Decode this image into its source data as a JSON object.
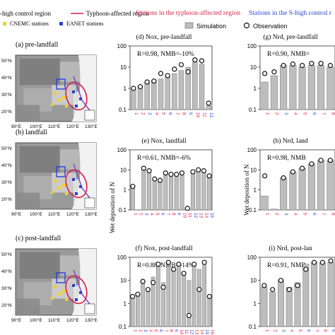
{
  "legend": {
    "left_region": "-high control region",
    "typhoon_region": "Typhoon-affected region",
    "cnemc": "CNEMC stations",
    "eanet": "EANET stations",
    "header_typhoon": "Stations in the typhoon-affected region",
    "header_shigh": "Stations in the S-high control r",
    "simulation": "Simulation",
    "observation": "Observation"
  },
  "colors": {
    "typhoon": "#d81e4a",
    "shigh": "#2b3fd1",
    "bar": "#bdbdbd",
    "purple": "#7b3fbf",
    "yellow": "#f2d21f"
  },
  "maps": [
    {
      "label": "(a)  pre-landfall",
      "lat": [
        "50°N",
        "40°N",
        "30°N",
        "20°N"
      ],
      "lon": [
        "90°E",
        "100°E",
        "110°E",
        "120°E",
        "130°E"
      ]
    },
    {
      "label": "(b)  landfall",
      "lat": [
        "50°N",
        "40°N",
        "30°N",
        "20°N"
      ],
      "lon": [
        "90°E",
        "100°E",
        "110°E",
        "120°E",
        "130°E"
      ]
    },
    {
      "label": "(c)  post-landfall",
      "lat": [
        "50°N",
        "40°N",
        "30°N",
        "20°N"
      ],
      "lon": [
        "90°E",
        "100°E",
        "110°E",
        "120°E",
        "130°E"
      ]
    }
  ],
  "ylabel_middle": "Wet deposition of N",
  "ylabel_right": "Wet deposition of N",
  "chart_data": [
    {
      "type": "bar",
      "title": "(d) Nox, pre-landfall",
      "stats": "R=0.98, NMB=-10%",
      "ylim": [
        0.1,
        100
      ],
      "log": true,
      "categories": [
        "1",
        "2",
        "3",
        "4",
        "5",
        "6",
        "7",
        "8",
        "9",
        "10",
        "11",
        "12"
      ],
      "series": [
        {
          "name": "Simulation",
          "values": [
            1.0,
            1.3,
            2.0,
            2.4,
            2.8,
            3.5,
            5.0,
            7.0,
            10,
            18,
            14,
            0.15
          ]
        },
        {
          "name": "Observation",
          "values": [
            1.0,
            1.2,
            2.0,
            2.2,
            5.0,
            4.0,
            8.0,
            13,
            6.0,
            22,
            20,
            0.2
          ]
        }
      ]
    },
    {
      "type": "bar",
      "title": "(e) Nox, landfall",
      "stats": "R=0.61, NMB=-6%",
      "ylim": [
        0.1,
        100
      ],
      "log": true,
      "categories": [
        "1",
        "2",
        "3",
        "4",
        "5",
        "6",
        "7",
        "8",
        "9",
        "10",
        "11",
        "12",
        "13",
        "14",
        "15"
      ],
      "series": [
        {
          "name": "Simulation",
          "values": [
            1.2,
            null,
            11,
            8,
            3,
            3,
            7,
            6,
            6,
            7,
            null,
            8,
            10,
            8,
            4
          ]
        },
        {
          "name": "Observation",
          "values": [
            1.5,
            null,
            12,
            9,
            3.5,
            3,
            7,
            6,
            6,
            7,
            0.12,
            8,
            10,
            9,
            5
          ]
        }
      ]
    },
    {
      "type": "bar",
      "title": "(f) Nox, post-landfall",
      "stats": "R=0.88, NMB=-14%",
      "ylim": [
        0.1,
        100
      ],
      "log": true,
      "categories": [
        "1",
        "2",
        "3",
        "4",
        "5",
        "6",
        "7",
        "8",
        "9",
        "10",
        "11",
        "12",
        "13",
        "14",
        "15",
        "16"
      ],
      "series": [
        {
          "name": "Simulation",
          "values": [
            2,
            2.5,
            9,
            4,
            14,
            40,
            8,
            40,
            30,
            50,
            20,
            10,
            50,
            30,
            50,
            2
          ]
        },
        {
          "name": "Observation",
          "values": [
            2,
            2.5,
            9,
            4,
            8,
            50,
            5,
            60,
            30,
            50,
            20,
            0.3,
            50,
            4,
            60,
            2
          ]
        }
      ]
    },
    {
      "type": "bar",
      "title": "(g) Nrd, pre-landfall",
      "stats": "R=0.90, NMB=",
      "ylim": [
        0.1,
        100
      ],
      "log": true,
      "categories": [
        "1",
        "2",
        "3",
        "4",
        "5",
        "6",
        "7",
        "8"
      ],
      "series": [
        {
          "name": "Simulation",
          "values": [
            2,
            4,
            12,
            12,
            10,
            12,
            12,
            10
          ]
        },
        {
          "name": "Observation",
          "values": [
            5,
            6,
            12,
            14,
            12,
            15,
            15,
            12
          ]
        }
      ]
    },
    {
      "type": "bar",
      "title": "(h) Nrd, land",
      "stats": "R=0.98, NMB",
      "ylim": [
        0.1,
        100
      ],
      "log": true,
      "categories": [
        "1",
        "2",
        "3",
        "4",
        "5",
        "6",
        "7",
        "8"
      ],
      "series": [
        {
          "name": "Simulation",
          "values": [
            0.5,
            0.11,
            4,
            8,
            12,
            20,
            30,
            30
          ]
        },
        {
          "name": "Observation",
          "values": [
            5,
            null,
            4,
            8,
            12,
            20,
            30,
            30
          ]
        }
      ]
    },
    {
      "type": "bar",
      "title": "(i) Nrd, post-lan",
      "stats": "R=0.91, NMB",
      "ylim": [
        0.1,
        100
      ],
      "log": true,
      "categories": [
        "1",
        "2",
        "3",
        "4",
        "5",
        "6",
        "7",
        "8",
        "9"
      ],
      "series": [
        {
          "name": "Simulation",
          "values": [
            5,
            3,
            10,
            5,
            8,
            50,
            60,
            60,
            60
          ]
        },
        {
          "name": "Observation",
          "values": [
            6,
            4,
            10,
            4,
            6,
            30,
            60,
            60,
            70
          ]
        }
      ]
    }
  ]
}
